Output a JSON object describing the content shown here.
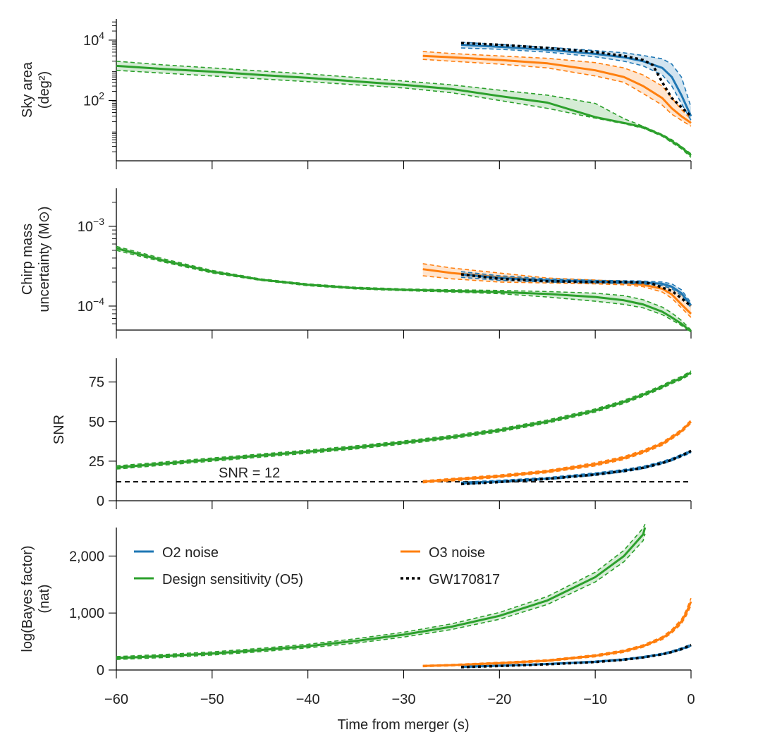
{
  "chart_data": {
    "type": "line",
    "xlabel": "Time from merger (s)",
    "xlim": [
      -60,
      0
    ],
    "x_ticks": [
      -60,
      -50,
      -40,
      -30,
      -20,
      -10,
      0
    ],
    "x_tick_labels": [
      "−60",
      "−50",
      "−40",
      "−30",
      "−20",
      "−10",
      "0"
    ],
    "colors": {
      "o2": "#1f77b4",
      "o3": "#ff7f0e",
      "o5": "#2ca02c",
      "gw": "#000000"
    },
    "legend": [
      {
        "key": "o2",
        "label": "O2 noise",
        "style": "solid"
      },
      {
        "key": "o5",
        "label": "Design sensitivity (O5)",
        "style": "solid"
      },
      {
        "key": "o3",
        "label": "O3 noise",
        "style": "solid"
      },
      {
        "key": "gw",
        "label": "GW170817",
        "style": "dotted"
      }
    ],
    "panels": [
      {
        "id": "sky",
        "ylabel_lines": [
          "Sky area",
          "(deg²)"
        ],
        "yscale": "log",
        "ylim": [
          1,
          50000
        ],
        "y_ticks": [
          100,
          10000
        ],
        "y_tick_labels": [
          [
            "10",
            "2"
          ],
          [
            "10",
            "4"
          ]
        ],
        "series": [
          {
            "key": "o5",
            "x": [
              -60,
              -55,
              -50,
              -45,
              -40,
              -35,
              -30,
              -25,
              -20,
              -15,
              -10,
              -7,
              -5,
              -3,
              -2,
              -1,
              0
            ],
            "y": [
              1400,
              1100,
              900,
              700,
              560,
              430,
              330,
              240,
              140,
              85,
              28,
              18,
              13,
              7,
              4.5,
              2.8,
              1.5
            ],
            "lo": [
              1000,
              800,
              650,
              520,
              420,
              330,
              260,
              180,
              100,
              55,
              26,
              17,
              12,
              6.5,
              4,
              2.5,
              1.3
            ],
            "hi": [
              2000,
              1500,
              1200,
              950,
              760,
              580,
              440,
              330,
              220,
              150,
              80,
              25,
              14,
              7.5,
              5,
              3,
              1.7
            ]
          },
          {
            "key": "o3",
            "x": [
              -28,
              -25,
              -20,
              -15,
              -10,
              -7,
              -5,
              -3,
              -2,
              -1,
              0
            ],
            "y": [
              3000,
              2700,
              2200,
              1700,
              1000,
              600,
              300,
              120,
              55,
              30,
              18
            ],
            "lo": [
              2300,
              2000,
              1600,
              1200,
              650,
              400,
              170,
              70,
              35,
              22,
              14
            ],
            "hi": [
              4200,
              3600,
              3000,
              2500,
              1800,
              1200,
              700,
              300,
              120,
              50,
              24
            ]
          },
          {
            "key": "o2",
            "x": [
              -24,
              -20,
              -15,
              -10,
              -7,
              -5,
              -3,
              -2,
              -1,
              0
            ],
            "y": [
              7000,
              6000,
              4800,
              3500,
              2700,
              2000,
              1200,
              600,
              150,
              30
            ],
            "lo": [
              5500,
              5000,
              4000,
              2800,
              2000,
              1400,
              700,
              300,
              80,
              22
            ],
            "hi": [
              8500,
              7200,
              5800,
              4500,
              3800,
              3100,
              2400,
              1600,
              600,
              60
            ]
          },
          {
            "key": "gw",
            "x": [
              -24,
              -20,
              -15,
              -10,
              -7,
              -5,
              -4,
              -3,
              -2,
              -1,
              0
            ],
            "y": [
              8000,
              7000,
              5500,
              4000,
              3000,
              2200,
              1500,
              400,
              120,
              60,
              30
            ]
          }
        ]
      },
      {
        "id": "chirp",
        "ylabel_lines": [
          "Chirp mass",
          "uncertainty (M⊙)"
        ],
        "yscale": "log",
        "ylim": [
          5e-05,
          0.003
        ],
        "y_ticks": [
          0.0001,
          0.001
        ],
        "y_tick_labels": [
          [
            "10",
            "−4"
          ],
          [
            "10",
            "−3"
          ]
        ],
        "series": [
          {
            "key": "o5",
            "x": [
              -60,
              -55,
              -50,
              -45,
              -40,
              -35,
              -30,
              -25,
              -20,
              -15,
              -10,
              -7,
              -5,
              -3,
              -2,
              -1,
              0
            ],
            "y": [
              0.00053,
              0.00037,
              0.00027,
              0.000215,
              0.000185,
              0.000168,
              0.00016,
              0.000155,
              0.00015,
              0.000142,
              0.00013,
              0.000118,
              0.000105,
              8.5e-05,
              7.2e-05,
              6e-05,
              4.8e-05
            ],
            "lo": [
              0.0005,
              0.000355,
              0.00026,
              0.00021,
              0.00018,
              0.000164,
              0.000156,
              0.00015,
              0.000143,
              0.00013,
              0.000115,
              0.000105,
              9.5e-05,
              7.8e-05,
              6.7e-05,
              5.7e-05,
              4.7e-05
            ],
            "hi": [
              0.00056,
              0.00039,
              0.00028,
              0.00022,
              0.00019,
              0.000172,
              0.000164,
              0.00016,
              0.000157,
              0.000152,
              0.000145,
              0.000135,
              0.00012,
              9.7e-05,
              8.2e-05,
              6.6e-05,
              5e-05
            ]
          },
          {
            "key": "o3",
            "x": [
              -28,
              -25,
              -20,
              -15,
              -10,
              -7,
              -5,
              -3,
              -2,
              -1,
              0
            ],
            "y": [
              0.00029,
              0.00026,
              0.00023,
              0.00021,
              0.0002,
              0.000195,
              0.000185,
              0.000165,
              0.00014,
              0.000105,
              8e-05
            ],
            "lo": [
              0.00024,
              0.00022,
              0.0002,
              0.000195,
              0.00019,
              0.000185,
              0.000175,
              0.00015,
              0.000125,
              9.5e-05,
              7.2e-05
            ],
            "hi": [
              0.00034,
              0.0003,
              0.00026,
              0.000225,
              0.000212,
              0.000205,
              0.0002,
              0.00019,
              0.000175,
              0.00014,
              0.0001
            ]
          },
          {
            "key": "o2",
            "x": [
              -24,
              -20,
              -15,
              -10,
              -7,
              -5,
              -3,
              -2,
              -1,
              0
            ],
            "y": [
              0.00025,
              0.000225,
              0.00021,
              0.000203,
              0.0002,
              0.000198,
              0.00019,
              0.000175,
              0.000145,
              0.000102
            ],
            "lo": [
              0.00023,
              0.00021,
              0.0002,
              0.000195,
              0.000192,
              0.00019,
              0.00018,
              0.000165,
              0.000135,
              9.5e-05
            ],
            "hi": [
              0.00027,
              0.00024,
              0.00022,
              0.00021,
              0.000208,
              0.000206,
              0.0002,
              0.00019,
              0.00016,
              0.00011
            ]
          },
          {
            "key": "gw",
            "x": [
              -24,
              -20,
              -15,
              -10,
              -7,
              -5,
              -4,
              -3,
              -2,
              -1,
              0
            ],
            "y": [
              0.00025,
              0.00022,
              0.000205,
              0.0002,
              0.0002,
              0.000198,
              0.00019,
              0.00017,
              0.000155,
              0.000125,
              0.0001
            ]
          }
        ]
      },
      {
        "id": "snr",
        "ylabel_lines": [
          "SNR"
        ],
        "yscale": "linear",
        "ylim": [
          0,
          90
        ],
        "y_ticks": [
          0,
          25,
          50,
          75
        ],
        "y_tick_labels": [
          [
            "0"
          ],
          [
            "25"
          ],
          [
            "50"
          ],
          [
            "75"
          ]
        ],
        "threshold": {
          "value": 12,
          "label": "SNR = 12"
        },
        "series": [
          {
            "key": "o5",
            "x": [
              -60,
              -55,
              -50,
              -45,
              -40,
              -35,
              -30,
              -25,
              -20,
              -15,
              -10,
              -7,
              -5,
              -3,
              -2,
              -1,
              0
            ],
            "y": [
              21,
              23.5,
              26,
              28.5,
              31,
              33.7,
              36.8,
              40.2,
              44.5,
              50,
              57,
              62.5,
              67,
              72,
              75,
              77.5,
              81
            ],
            "lo": [
              20,
              22.5,
              25,
              27.5,
              30,
              32.7,
              35.8,
              39.2,
              43.5,
              49,
              56,
              61.5,
              66,
              71,
              74,
              76.5,
              80
            ],
            "hi": [
              22,
              24.5,
              27,
              29.5,
              32,
              34.7,
              37.8,
              41.2,
              45.5,
              51,
              58,
              63.5,
              68,
              73,
              76,
              78.5,
              82
            ]
          },
          {
            "key": "o3",
            "x": [
              -28,
              -25,
              -20,
              -15,
              -10,
              -7,
              -5,
              -3,
              -2,
              -1,
              0
            ],
            "y": [
              12,
              13.3,
              15.5,
              18.5,
              23,
              27,
              31,
              36,
              40,
              44,
              50
            ],
            "lo": [
              11.3,
              12.5,
              14.7,
              17.7,
              22,
              26,
              30,
              35,
              39,
              43,
              49
            ],
            "hi": [
              12.7,
              14.1,
              16.3,
              19.3,
              24,
              28,
              32,
              37,
              41,
              45,
              51
            ]
          },
          {
            "key": "o2",
            "x": [
              -24,
              -20,
              -15,
              -10,
              -7,
              -5,
              -3,
              -2,
              -1,
              0
            ],
            "y": [
              11,
              12.2,
              14,
              16.8,
              19,
              21,
              24,
              26,
              28.5,
              31
            ],
            "lo": [
              10.3,
              11.5,
              13.3,
              16,
              18.2,
              20.2,
              23.2,
              25.2,
              27.7,
              30.2
            ],
            "hi": [
              11.7,
              12.9,
              14.7,
              17.6,
              19.8,
              21.8,
              24.8,
              26.8,
              29.3,
              31.8
            ]
          },
          {
            "key": "gw",
            "x": [
              -24,
              -20,
              -15,
              -10,
              -7,
              -5,
              -3,
              -2,
              -1,
              0
            ],
            "y": [
              10.5,
              11.8,
              13.8,
              16.5,
              18.8,
              20.8,
              23.8,
              25.8,
              28.5,
              31.5
            ]
          }
        ]
      },
      {
        "id": "bayes",
        "ylabel_lines": [
          "log(Bayes factor)",
          "(nat)"
        ],
        "yscale": "linear",
        "ylim": [
          0,
          2500
        ],
        "y_ticks": [
          0,
          1000,
          2000
        ],
        "y_tick_labels": [
          [
            "0"
          ],
          [
            "1,000"
          ],
          [
            "2,000"
          ]
        ],
        "series": [
          {
            "key": "o5",
            "x": [
              -60,
              -55,
              -50,
              -45,
              -40,
              -35,
              -30,
              -25,
              -20,
              -15,
              -10,
              -7,
              -5,
              -4.8
            ],
            "y": [
              210,
              245,
              290,
              350,
              420,
              510,
              620,
              760,
              950,
              1220,
              1630,
              2000,
              2380,
              2500
            ],
            "lo": [
              185,
              218,
              262,
              320,
              388,
              472,
              578,
              710,
              890,
              1150,
              1545,
              1900,
              2270,
              2390
            ],
            "hi": [
              235,
              272,
              318,
              380,
              452,
              548,
              662,
              810,
              1010,
              1290,
              1715,
              2100,
              2490,
              2560
            ]
          },
          {
            "key": "o3",
            "x": [
              -28,
              -25,
              -20,
              -15,
              -10,
              -7,
              -5,
              -3,
              -2,
              -1,
              -0.5,
              0
            ],
            "y": [
              70,
              85,
              120,
              165,
              250,
              330,
              420,
              560,
              680,
              850,
              1000,
              1200
            ],
            "lo": [
              58,
              72,
              105,
              150,
              232,
              310,
              398,
              535,
              650,
              810,
              950,
              1130
            ],
            "hi": [
              82,
              98,
              135,
              180,
              268,
              350,
              442,
              585,
              710,
              890,
              1050,
              1260
            ]
          },
          {
            "key": "o2",
            "x": [
              -24,
              -20,
              -15,
              -10,
              -7,
              -5,
              -3,
              -2,
              -1,
              0
            ],
            "y": [
              55,
              75,
              105,
              145,
              185,
              225,
              280,
              320,
              370,
              430
            ],
            "lo": [
              45,
              65,
              95,
              133,
              172,
              212,
              265,
              305,
              352,
              410
            ],
            "hi": [
              65,
              85,
              115,
              157,
              198,
              238,
              295,
              335,
              388,
              450
            ]
          },
          {
            "key": "gw",
            "x": [
              -24,
              -20,
              -15,
              -10,
              -7,
              -5,
              -3,
              -2,
              -1,
              0
            ],
            "y": [
              50,
              70,
              100,
              140,
              180,
              220,
              275,
              315,
              365,
              440
            ]
          }
        ]
      }
    ]
  }
}
